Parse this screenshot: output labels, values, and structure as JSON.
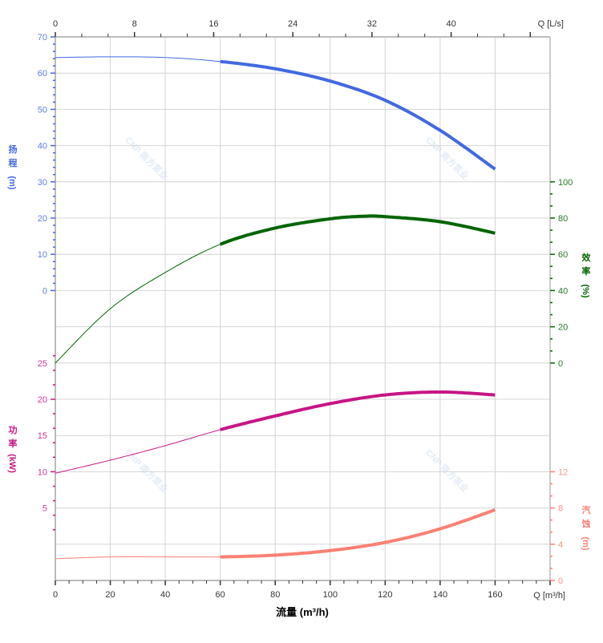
{
  "chart_data": {
    "type": "line",
    "x_axis": {
      "label": "流量 (m³/h)",
      "unit_label": "Q [m³/h]",
      "range": [
        0,
        180
      ],
      "ticks": [
        0,
        20,
        40,
        60,
        80,
        100,
        120,
        140,
        160
      ]
    },
    "x2_axis": {
      "unit_label": "Q [L/s]",
      "range": [
        0,
        50
      ],
      "ticks": [
        0,
        8,
        16,
        24,
        32,
        40
      ]
    },
    "grid": true,
    "watermark": "CNP 南方泵业",
    "series": [
      {
        "key": "head",
        "axis_title_lines": [
          "扬",
          "程",
          "(m)"
        ],
        "color": "#4169e1",
        "axis": "left-upper",
        "range": [
          0,
          70
        ],
        "ticks": [
          0,
          10,
          20,
          30,
          40,
          50,
          60,
          70
        ],
        "x": [
          0,
          20,
          40,
          60,
          80,
          100,
          120,
          140,
          160
        ],
        "y": [
          64.3,
          64.5,
          64.3,
          63.2,
          61.2,
          57.8,
          52.5,
          44.2,
          33.5
        ],
        "thick_from": 60
      },
      {
        "key": "efficiency",
        "axis_title_lines": [
          "效",
          "率",
          "(%)"
        ],
        "color": "#006400",
        "axis": "right-upper",
        "range": [
          0,
          100
        ],
        "ticks": [
          0,
          20,
          40,
          60,
          80,
          100
        ],
        "x": [
          0,
          20,
          40,
          60,
          80,
          100,
          112,
          120,
          140,
          160
        ],
        "y": [
          0,
          30,
          50,
          65.5,
          74.5,
          79.6,
          81,
          80.8,
          78,
          71.7
        ],
        "thick_from": 60
      },
      {
        "key": "power",
        "axis_title_lines": [
          "功",
          "率",
          "(kW)"
        ],
        "color": "#c71585",
        "axis": "left-lower",
        "range": [
          0,
          25
        ],
        "ticks": [
          5,
          10,
          15,
          20,
          25
        ],
        "x": [
          0,
          20,
          40,
          60,
          80,
          100,
          120,
          140,
          160
        ],
        "y": [
          9.8,
          11.6,
          13.6,
          15.8,
          17.7,
          19.4,
          20.6,
          21.0,
          20.6
        ],
        "thick_from": 60
      },
      {
        "key": "npsh",
        "axis_title_lines": [
          "汽",
          "蚀",
          "(m)"
        ],
        "color": "#fa8072",
        "axis": "right-lower",
        "range": [
          0,
          12
        ],
        "ticks": [
          0,
          4,
          8,
          12
        ],
        "x": [
          0,
          20,
          40,
          60,
          80,
          100,
          120,
          140,
          160
        ],
        "y": [
          2.4,
          2.6,
          2.6,
          2.6,
          2.8,
          3.3,
          4.2,
          5.7,
          7.8
        ],
        "thick_from": 60
      }
    ]
  }
}
